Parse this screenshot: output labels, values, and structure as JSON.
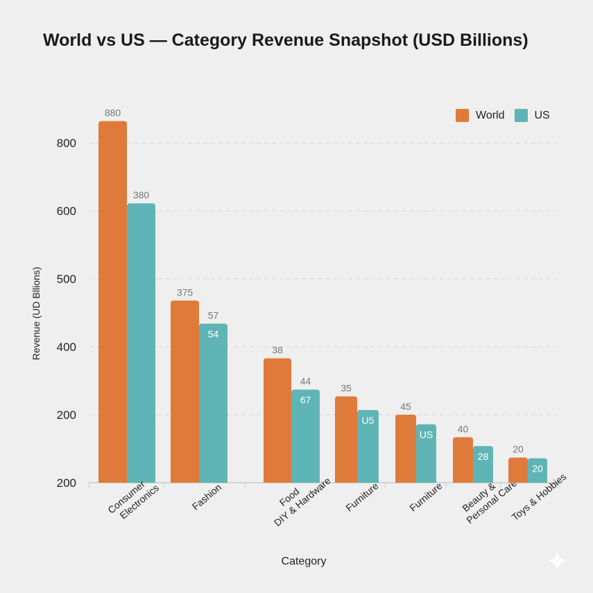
{
  "chart_data": {
    "type": "bar",
    "title": "World vs US — Category Revenue Snapshot (USD Billions)",
    "xlabel": "Category",
    "ylabel": "Revenue (UD Bllions)",
    "y_tick_labels": [
      "200",
      "200",
      "400",
      "500",
      "600",
      "800"
    ],
    "y_scale_note": "bar heights expressed in gridline levels (0 = baseline, each level = one gridline)",
    "ylim_levels": [
      0,
      5.5
    ],
    "grid": true,
    "legend_position": "top-right",
    "categories": [
      [
        "Consumer",
        "Electronics"
      ],
      [
        "Fashion"
      ],
      [
        "Food",
        "DIY & Hardware"
      ],
      [
        "Furniture"
      ],
      [
        "Furniture"
      ],
      [
        "Beauty &",
        "Personal Care"
      ],
      [
        "Toys & Hobbies"
      ]
    ],
    "series": [
      {
        "name": "World",
        "color": "#e07a3a",
        "levels": [
          5.32,
          2.68,
          1.83,
          1.27,
          1.0,
          0.67,
          0.37
        ],
        "labels_above": [
          "880",
          "375",
          "38",
          "35",
          "45",
          "40",
          "20"
        ],
        "labels_inside": [
          "",
          "",
          "",
          "",
          "",
          "",
          ""
        ]
      },
      {
        "name": "US",
        "color": "#5fb5b5",
        "levels": [
          4.11,
          2.34,
          1.37,
          1.07,
          0.86,
          0.54,
          0.36
        ],
        "labels_above": [
          "380",
          "57",
          "44",
          "",
          "",
          "",
          ""
        ],
        "labels_inside": [
          "",
          "54",
          "67",
          "U5",
          "US",
          "28",
          "20"
        ]
      }
    ]
  }
}
